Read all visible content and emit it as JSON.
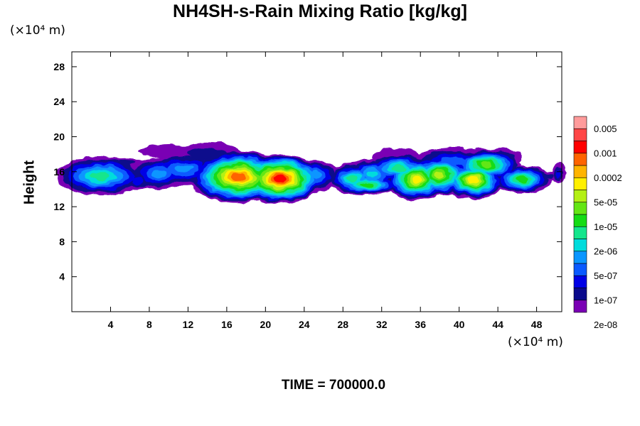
{
  "chart_data": {
    "type": "heatmap",
    "title": "NH4SH-s-Rain Mixing Ratio [kg/kg]",
    "ylabel": "Height",
    "xunit": "(×10⁴ m)",
    "yunit": "(×10⁴ m)",
    "xlim": [
      0,
      50.6
    ],
    "ylim": [
      0,
      29.7
    ],
    "x_ticks": [
      "4",
      "8",
      "12",
      "16",
      "20",
      "24",
      "28",
      "32",
      "36",
      "40",
      "44",
      "48"
    ],
    "y_ticks": [
      "4",
      "8",
      "12",
      "16",
      "20",
      "24",
      "28"
    ],
    "colorbar": {
      "labels": [
        "0.005",
        "0.001",
        "0.0002",
        "5e-05",
        "1e-05",
        "2e-06",
        "5e-07",
        "1e-07",
        "2e-08"
      ],
      "colors": [
        "#7a00b4",
        "#0a0a8c",
        "#0000e6",
        "#0a5aff",
        "#0a96ff",
        "#00dcdc",
        "#14e68c",
        "#14dc14",
        "#64e614",
        "#b4f014",
        "#fff000",
        "#ffb400",
        "#ff6400",
        "#ff0000",
        "#ff4646",
        "#ff9b9b"
      ]
    },
    "time_label": "TIME = 700000.0"
  }
}
